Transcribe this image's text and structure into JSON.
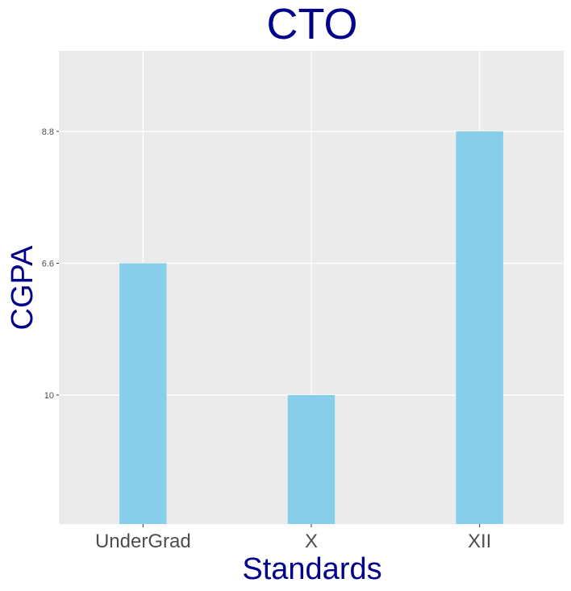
{
  "chart_data": {
    "type": "bar",
    "title": "CTO",
    "xlabel": "Standards",
    "ylabel": "CGPA",
    "categories": [
      "UnderGrad",
      "X",
      "XII"
    ],
    "y_tick_labels": [
      "10",
      "6.6",
      "8.8"
    ],
    "values_in_axis_order": [
      2,
      1,
      3
    ],
    "note_values": "y axis is discrete; tick labels listed bottom-to-top, bars reach the level of their printed value",
    "bar_color": "#87CEEB",
    "panel_color": "#EBEBEB",
    "grid": true,
    "legend": "none"
  }
}
